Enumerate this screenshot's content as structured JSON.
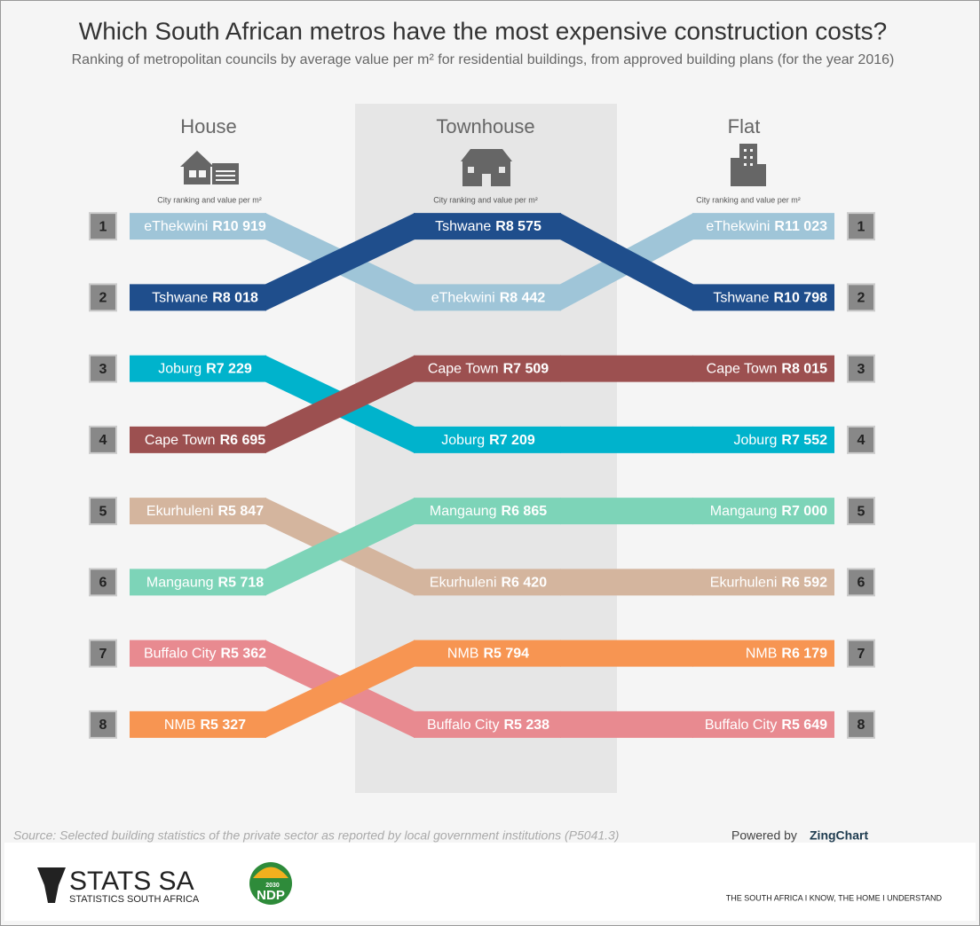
{
  "chart_data": {
    "type": "bump",
    "title": "Which South African metros have the most expensive construction costs?",
    "subtitle": "Ranking of metropolitan councils by average value per m² for residential buildings, from approved building plans (for the year 2016)",
    "columns": [
      "House",
      "Townhouse",
      "Flat"
    ],
    "column_note": "City ranking and value per m²",
    "ylim": [
      0.5,
      8.5
    ],
    "yticks": [
      1,
      2,
      3,
      4,
      5,
      6,
      7,
      8
    ],
    "series": [
      {
        "name": "eThekwini",
        "color": "#9fc5d8",
        "ranks": [
          1,
          2,
          1
        ],
        "values": [
          10919,
          8442,
          11023
        ],
        "value_labels": [
          "R10 919",
          "R8 442",
          "R11 023"
        ]
      },
      {
        "name": "Tshwane",
        "color": "#1f4e8c",
        "ranks": [
          2,
          1,
          2
        ],
        "values": [
          8018,
          8575,
          10798
        ],
        "value_labels": [
          "R8 018",
          "R8 575",
          "R10 798"
        ]
      },
      {
        "name": "Joburg",
        "color": "#00b3cc",
        "ranks": [
          3,
          4,
          4
        ],
        "values": [
          7229,
          7209,
          7552
        ],
        "value_labels": [
          "R7 229",
          "R7 209",
          "R7 552"
        ]
      },
      {
        "name": "Cape Town",
        "color": "#9c5050",
        "ranks": [
          4,
          3,
          3
        ],
        "values": [
          6695,
          7509,
          8015
        ],
        "value_labels": [
          "R6 695",
          "R7 509",
          "R8 015"
        ]
      },
      {
        "name": "Ekurhuleni",
        "color": "#d4b59e",
        "ranks": [
          5,
          6,
          6
        ],
        "values": [
          5847,
          6420,
          6592
        ],
        "value_labels": [
          "R5 847",
          "R6 420",
          "R6 592"
        ]
      },
      {
        "name": "Mangaung",
        "color": "#7dd4b8",
        "ranks": [
          6,
          5,
          5
        ],
        "values": [
          5718,
          6865,
          7000
        ],
        "value_labels": [
          "R5 718",
          "R6 865",
          "R7 000"
        ]
      },
      {
        "name": "Buffalo City",
        "color": "#e88a90",
        "ranks": [
          7,
          8,
          8
        ],
        "values": [
          5362,
          5238,
          5649
        ],
        "value_labels": [
          "R5 362",
          "R5 238",
          "R5 649"
        ]
      },
      {
        "name": "NMB",
        "color": "#f79552",
        "ranks": [
          8,
          7,
          7
        ],
        "values": [
          5327,
          5794,
          6179
        ],
        "value_labels": [
          "R5 327",
          "R5 794",
          "R6 179"
        ]
      }
    ]
  },
  "footer": {
    "source": "Source: Selected building statistics of the private sector as reported by local government institutions (P5041.3)",
    "powered_by": "Powered by",
    "zingchart": "ZingChart",
    "logo": "STATS SA",
    "logo_sub": "STATISTICS SOUTH AFRICA",
    "ndp_year": "2030",
    "ndp": "NDP",
    "tagline": "THE SOUTH AFRICA I KNOW, THE HOME I UNDERSTAND"
  }
}
